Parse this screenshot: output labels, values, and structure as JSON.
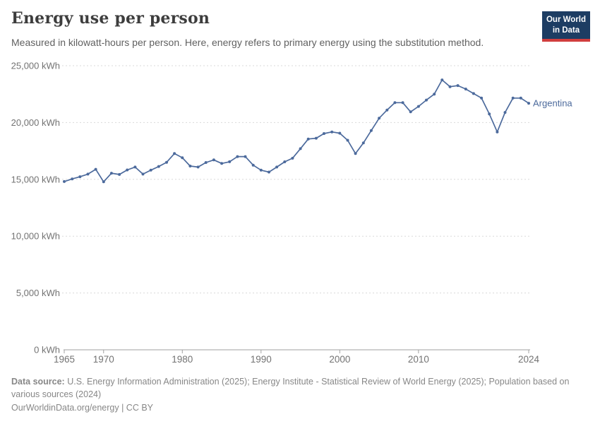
{
  "header": {
    "title": "Energy use per person",
    "subtitle": "Measured in kilowatt-hours per person. Here, energy refers to primary energy using the substitution method."
  },
  "logo": {
    "line1": "Our World",
    "line2": "in Data",
    "bg_color": "#1d3d63",
    "accent_color": "#d13e3e"
  },
  "chart_data": {
    "type": "line",
    "title": "Energy use per person",
    "unit": "kWh",
    "entity_label": "Argentina",
    "x": [
      1965,
      1966,
      1967,
      1968,
      1969,
      1970,
      1971,
      1972,
      1973,
      1974,
      1975,
      1976,
      1977,
      1978,
      1979,
      1980,
      1981,
      1982,
      1983,
      1984,
      1985,
      1986,
      1987,
      1988,
      1989,
      1990,
      1991,
      1992,
      1993,
      1994,
      1995,
      1996,
      1997,
      1998,
      1999,
      2000,
      2001,
      2002,
      2003,
      2004,
      2005,
      2006,
      2007,
      2008,
      2009,
      2010,
      2011,
      2012,
      2013,
      2014,
      2015,
      2016,
      2017,
      2018,
      2019,
      2020,
      2021,
      2022,
      2023,
      2024
    ],
    "series": [
      {
        "name": "Argentina",
        "color": "#4C6A9C",
        "values": [
          14810,
          15040,
          15230,
          15460,
          15880,
          14780,
          15540,
          15430,
          15830,
          16080,
          15460,
          15810,
          16130,
          16500,
          17270,
          16900,
          16170,
          16080,
          16480,
          16710,
          16400,
          16550,
          17000,
          17000,
          16250,
          15810,
          15640,
          16080,
          16540,
          16860,
          17700,
          18550,
          18620,
          19030,
          19170,
          19060,
          18440,
          17270,
          18200,
          19290,
          20380,
          21100,
          21750,
          21750,
          20940,
          21420,
          21980,
          22500,
          23750,
          23150,
          23250,
          22950,
          22550,
          22150,
          20750,
          19170,
          20890,
          22150,
          22150,
          21700
        ]
      }
    ],
    "ylim": [
      0,
      25000
    ],
    "xlim": [
      1965,
      2024
    ],
    "y_ticks": [
      {
        "value": 0,
        "label": "0 kWh"
      },
      {
        "value": 5000,
        "label": "5,000 kWh"
      },
      {
        "value": 10000,
        "label": "10,000 kWh"
      },
      {
        "value": 15000,
        "label": "15,000 kWh"
      },
      {
        "value": 20000,
        "label": "20,000 kWh"
      },
      {
        "value": 25000,
        "label": "25,000 kWh"
      }
    ],
    "x_ticks": [
      1965,
      1970,
      1980,
      1990,
      2000,
      2010,
      2024
    ],
    "grid": "horizontal-dashed",
    "legend_position": "end-of-line"
  },
  "footer": {
    "datasource_label": "Data source:",
    "datasource_text": " U.S. Energy Information Administration (2025); Energy Institute - Statistical Review of World Energy (2025); Population based on various sources (2024)",
    "link_text": "OurWorldinData.org/energy | CC BY"
  }
}
